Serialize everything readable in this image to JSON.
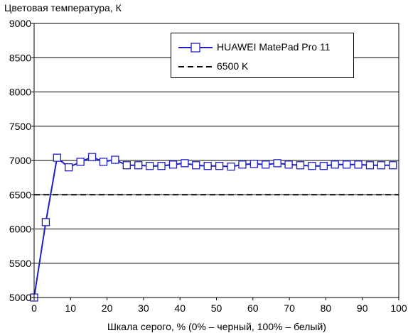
{
  "chart_data": {
    "type": "line",
    "ylabel": "Цветовая температура, К",
    "xlabel": "Шкала серого, % (0% – черный, 100% – белый)",
    "xlim": [
      0,
      100
    ],
    "ylim": [
      5000,
      9000
    ],
    "x_ticks": [
      "0",
      "10",
      "20",
      "30",
      "40",
      "50",
      "60",
      "70",
      "80",
      "90",
      "100"
    ],
    "y_ticks": [
      "5000",
      "5500",
      "6000",
      "6500",
      "7000",
      "7500",
      "8000",
      "8500",
      "9000"
    ],
    "grid": "horizontal",
    "legend_position": "top-right",
    "series": [
      {
        "name": "HUAWEI MatePad Pro 11",
        "color": "#1f1fc8",
        "marker": "square",
        "x": [
          0,
          3.2,
          6.3,
          9.5,
          12.7,
          15.9,
          19.0,
          22.2,
          25.4,
          28.6,
          31.7,
          34.9,
          38.1,
          41.3,
          44.4,
          47.6,
          50.8,
          54.0,
          57.1,
          60.3,
          63.5,
          66.7,
          69.8,
          73.0,
          76.2,
          79.4,
          82.5,
          85.7,
          88.9,
          92.1,
          95.2,
          98.4
        ],
        "y": [
          4990,
          6100,
          7040,
          6900,
          6980,
          7050,
          6980,
          7010,
          6930,
          6930,
          6920,
          6920,
          6940,
          6960,
          6930,
          6920,
          6920,
          6910,
          6940,
          6950,
          6940,
          6960,
          6940,
          6930,
          6920,
          6920,
          6940,
          6940,
          6940,
          6930,
          6930,
          6930
        ]
      },
      {
        "name": "6500 K",
        "color": "#000000",
        "style": "dashed",
        "x": [
          0,
          100
        ],
        "y": [
          6500,
          6500
        ]
      }
    ]
  }
}
